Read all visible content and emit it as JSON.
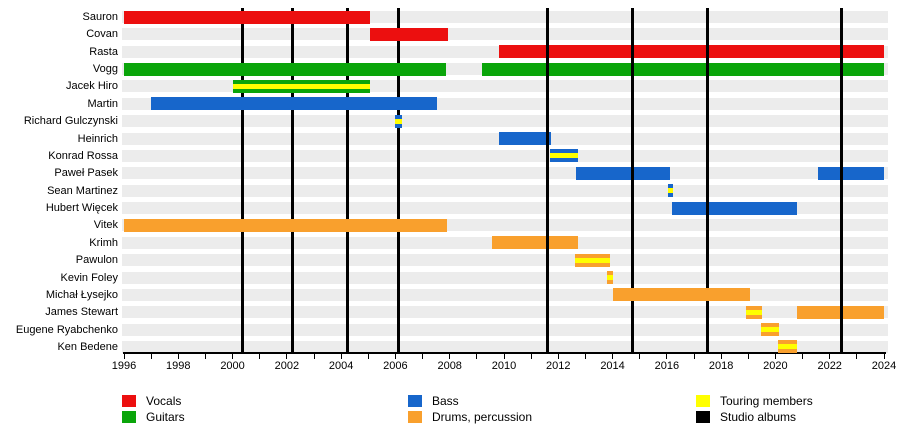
{
  "chart_data": {
    "type": "timeline-gantt",
    "description": "Band members timeline (Gantt-style) with studio-album vertical lines",
    "x_axis": {
      "start": 1996,
      "end": 2024,
      "tick_interval_years": 1,
      "label_interval_years": 2,
      "labels": [
        "1996",
        "1998",
        "2000",
        "2002",
        "2004",
        "2006",
        "2008",
        "2010",
        "2012",
        "2014",
        "2016",
        "2018",
        "2020",
        "2022",
        "2024"
      ]
    },
    "colors": {
      "vocals": "#ec0f0f",
      "guitars": "#0aa50a",
      "bass": "#1766cb",
      "drums": "#f9a02d",
      "touring": "#ffff00",
      "albums": "#000000",
      "row_band": "#ececec"
    },
    "album_lines": {
      "behind_bars": [
        2000.35,
        2002.2,
        2004.25,
        2006.13
      ],
      "front_of_bars": [
        2011.6,
        2014.75,
        2017.5,
        2022.45
      ]
    },
    "rows": [
      {
        "name": "Sauron",
        "role": "vocals",
        "segments": [
          {
            "from": 1996.0,
            "to": 2005.05
          }
        ]
      },
      {
        "name": "Covan",
        "role": "vocals",
        "segments": [
          {
            "from": 2005.05,
            "to": 2007.95
          }
        ]
      },
      {
        "name": "Rasta",
        "role": "vocals",
        "segments": [
          {
            "from": 2009.8,
            "to": 2024.0
          }
        ]
      },
      {
        "name": "Vogg",
        "role": "guitars",
        "segments": [
          {
            "from": 1996.0,
            "to": 2007.87
          },
          {
            "from": 2009.2,
            "to": 2024.0
          }
        ]
      },
      {
        "name": "Jacek Hiro",
        "role": "guitars",
        "segments": [
          {
            "from": 2000.0,
            "to": 2005.05,
            "touring": true
          }
        ]
      },
      {
        "name": "Martin",
        "role": "bass",
        "segments": [
          {
            "from": 1997.0,
            "to": 2007.55
          }
        ]
      },
      {
        "name": "Richard Gulczynski",
        "role": "bass",
        "segments": [
          {
            "from": 2006.0,
            "to": 2006.25,
            "touring": true
          }
        ]
      },
      {
        "name": "Heinrich",
        "role": "bass",
        "segments": [
          {
            "from": 2009.8,
            "to": 2011.72
          }
        ]
      },
      {
        "name": "Konrad Rossa",
        "role": "bass",
        "segments": [
          {
            "from": 2011.68,
            "to": 2012.72,
            "touring": true
          }
        ]
      },
      {
        "name": "Paweł Pasek",
        "role": "bass",
        "segments": [
          {
            "from": 2012.65,
            "to": 2016.1
          },
          {
            "from": 2021.55,
            "to": 2024.0
          }
        ]
      },
      {
        "name": "Sean Martinez",
        "role": "bass",
        "segments": [
          {
            "from": 2016.03,
            "to": 2016.22,
            "touring": true
          }
        ]
      },
      {
        "name": "Hubert Więcek",
        "role": "bass",
        "segments": [
          {
            "from": 2016.18,
            "to": 2020.78
          }
        ]
      },
      {
        "name": "Vitek",
        "role": "drums",
        "segments": [
          {
            "from": 1996.0,
            "to": 2007.9
          }
        ]
      },
      {
        "name": "Krimh",
        "role": "drums",
        "segments": [
          {
            "from": 2009.55,
            "to": 2012.74
          }
        ]
      },
      {
        "name": "Pawulon",
        "role": "drums",
        "segments": [
          {
            "from": 2012.6,
            "to": 2013.9,
            "touring": true
          }
        ]
      },
      {
        "name": "Kevin Foley",
        "role": "drums",
        "segments": [
          {
            "from": 2013.8,
            "to": 2014.0,
            "touring": true
          }
        ]
      },
      {
        "name": "Michał Łysejko",
        "role": "drums",
        "layer": "above",
        "segments": [
          {
            "from": 2014.0,
            "to": 2019.05
          }
        ]
      },
      {
        "name": "James Stewart",
        "role": "drums",
        "segments": [
          {
            "from": 2018.9,
            "to": 2019.5,
            "touring": true
          },
          {
            "from": 2020.78,
            "to": 2024.0
          }
        ]
      },
      {
        "name": "Eugene Ryabchenko",
        "role": "drums",
        "segments": [
          {
            "from": 2019.47,
            "to": 2020.12,
            "touring": true
          }
        ]
      },
      {
        "name": "Ken Bedene",
        "role": "drums",
        "segments": [
          {
            "from": 2020.08,
            "to": 2020.78,
            "touring": true
          }
        ]
      }
    ],
    "legend": [
      {
        "label": "Vocals",
        "color_key": "vocals"
      },
      {
        "label": "Guitars",
        "color_key": "guitars"
      },
      {
        "label": "Bass",
        "color_key": "bass"
      },
      {
        "label": "Drums, percussion",
        "color_key": "drums"
      },
      {
        "label": "Touring members",
        "color_key": "touring"
      },
      {
        "label": "Studio albums",
        "color_key": "albums"
      }
    ]
  }
}
